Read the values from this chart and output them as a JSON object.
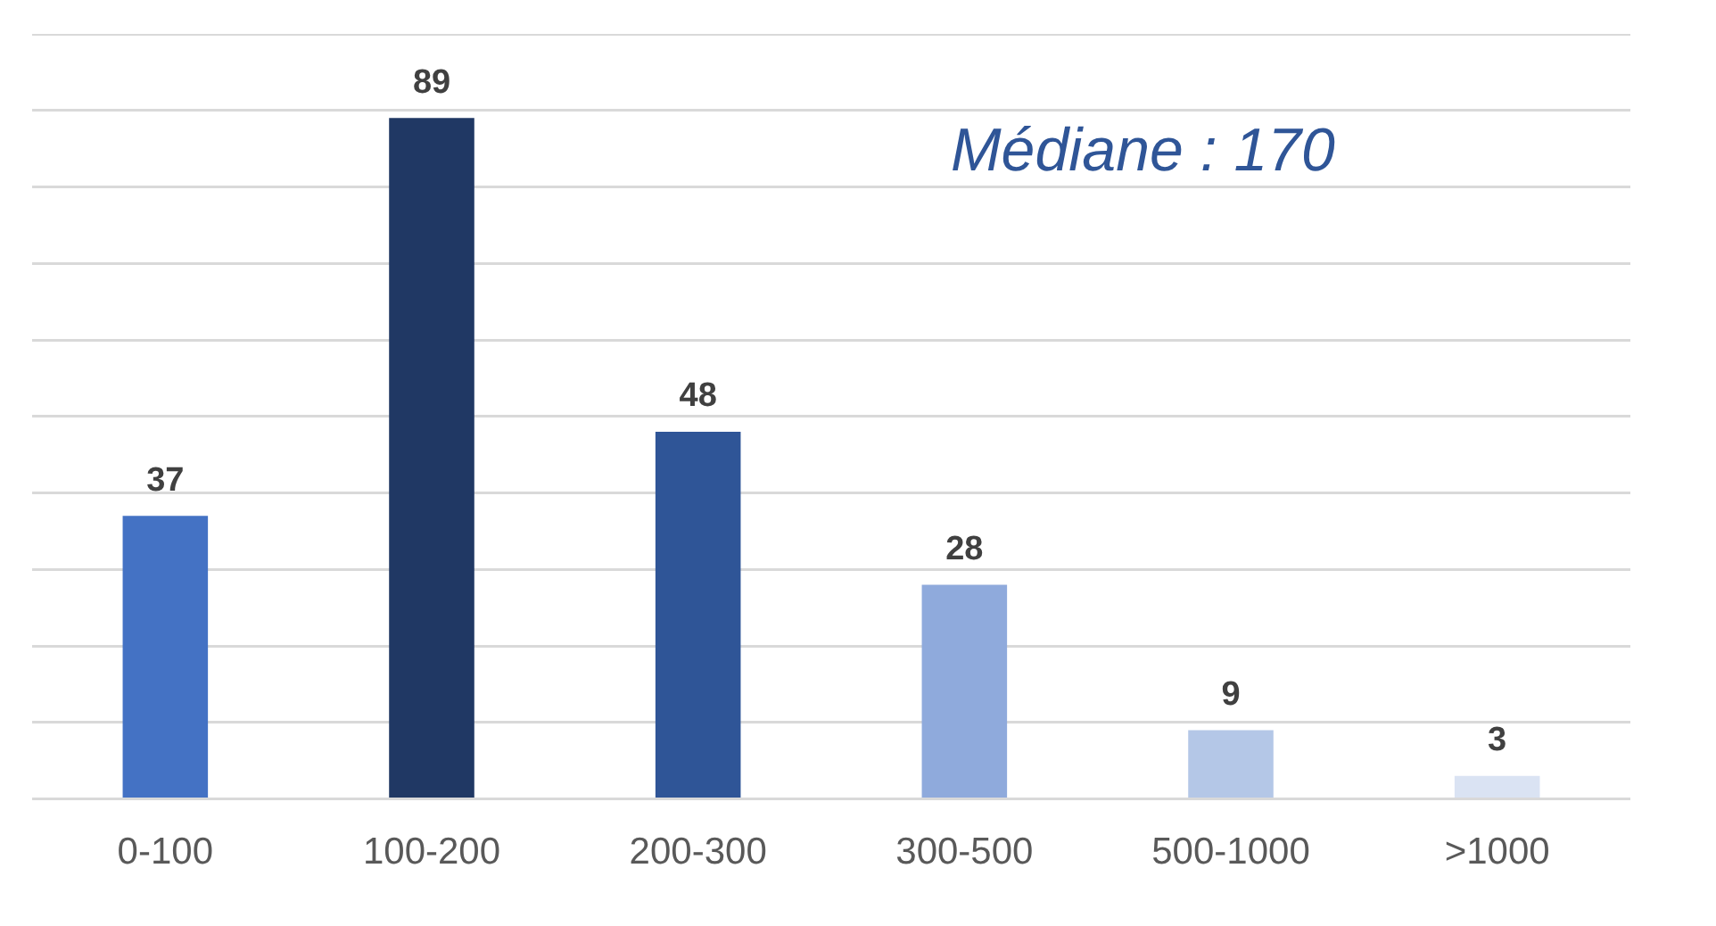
{
  "chart_data": {
    "type": "bar",
    "categories": [
      "0-100",
      "100-200",
      "200-300",
      "300-500",
      "500-1000",
      ">1000"
    ],
    "values": [
      37,
      89,
      48,
      28,
      9,
      3
    ],
    "colors": [
      "#4472c4",
      "#203864",
      "#2f5597",
      "#8faadc",
      "#b4c7e7",
      "#dae3f3"
    ],
    "grid": "y",
    "data_labels": true,
    "tick_labels": "x",
    "legend": false,
    "annotations": [
      "Médiane : 170"
    ]
  }
}
